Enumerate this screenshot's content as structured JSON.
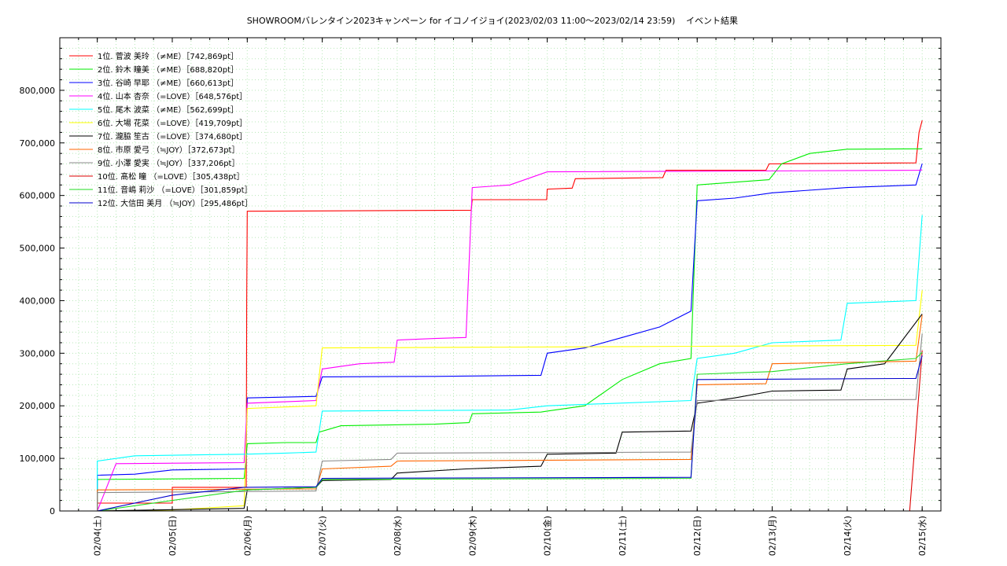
{
  "chart_data": {
    "type": "line",
    "title": "SHOWROOMバレンタイン2023キャンペーン for イコノイジョイ(2023/02/03 11:00〜2023/02/14 23:59)",
    "subtitle": "イベント結果",
    "xlabel": "",
    "ylabel": "",
    "ylim": [
      0,
      900000
    ],
    "xlim": [
      "2023-02-03 12:00",
      "2023-02-15 06:00"
    ],
    "grid": true,
    "legend_position": "top-left",
    "x_ticks": [
      "02/04(土)",
      "02/05(日)",
      "02/06(月)",
      "02/07(火)",
      "02/08(水)",
      "02/09(木)",
      "02/10(金)",
      "02/11(土)",
      "02/12(日)",
      "02/13(月)",
      "02/14(火)",
      "02/15(水)"
    ],
    "y_ticks": [
      "0",
      "100,000",
      "200,000",
      "300,000",
      "400,000",
      "500,000",
      "600,000",
      "700,000",
      "800,000"
    ],
    "series": [
      {
        "name": "1位. 菅波 美玲 （≠ME）［742,869pt］",
        "color": "#ff0000",
        "points": [
          [
            "2023-02-04 00:00",
            5000
          ],
          [
            "2023-02-04 00:00",
            15000
          ],
          [
            "2023-02-04 12:00",
            15000
          ],
          [
            "2023-02-05 00:00",
            15000
          ],
          [
            "2023-02-05 00:00",
            45000
          ],
          [
            "2023-02-05 23:40",
            45000
          ],
          [
            "2023-02-05 23:50",
            400000
          ],
          [
            "2023-02-06 00:00",
            570000
          ],
          [
            "2023-02-08 23:40",
            572000
          ],
          [
            "2023-02-09 00:00",
            592000
          ],
          [
            "2023-02-09 23:50",
            592000
          ],
          [
            "2023-02-10 00:00",
            612000
          ],
          [
            "2023-02-10 08:00",
            614000
          ],
          [
            "2023-02-10 09:00",
            632000
          ],
          [
            "2023-02-11 13:00",
            634000
          ],
          [
            "2023-02-11 14:00",
            648000
          ],
          [
            "2023-02-12 22:00",
            648000
          ],
          [
            "2023-02-12 23:00",
            660000
          ],
          [
            "2023-02-14 22:00",
            662000
          ],
          [
            "2023-02-14 23:00",
            720000
          ],
          [
            "2023-02-15 00:00",
            742869
          ]
        ]
      },
      {
        "name": "2位. 鈴木 瞳美 （≠ME）［688,820pt］",
        "color": "#00ee00",
        "points": [
          [
            "2023-02-04 00:00",
            0
          ],
          [
            "2023-02-04 00:00",
            60000
          ],
          [
            "2023-02-05 23:00",
            62000
          ],
          [
            "2023-02-06 00:00",
            128000
          ],
          [
            "2023-02-06 12:00",
            130000
          ],
          [
            "2023-02-06 22:00",
            130000
          ],
          [
            "2023-02-06 23:00",
            150000
          ],
          [
            "2023-02-07 06:00",
            162000
          ],
          [
            "2023-02-08 12:00",
            165000
          ],
          [
            "2023-02-08 23:00",
            168000
          ],
          [
            "2023-02-09 00:00",
            185000
          ],
          [
            "2023-02-09 22:00",
            188000
          ],
          [
            "2023-02-10 00:00",
            190000
          ],
          [
            "2023-02-10 12:00",
            200000
          ],
          [
            "2023-02-11 00:00",
            250000
          ],
          [
            "2023-02-11 12:00",
            280000
          ],
          [
            "2023-02-11 22:00",
            290000
          ],
          [
            "2023-02-12 00:00",
            620000
          ],
          [
            "2023-02-12 23:00",
            630000
          ],
          [
            "2023-02-13 03:00",
            660000
          ],
          [
            "2023-02-13 12:00",
            680000
          ],
          [
            "2023-02-14 00:00",
            688000
          ],
          [
            "2023-02-15 00:00",
            688820
          ]
        ]
      },
      {
        "name": "3位. 谷崎 早耶 （≠ME）［660,613pt］",
        "color": "#0000ff",
        "points": [
          [
            "2023-02-04 00:00",
            0
          ],
          [
            "2023-02-04 00:00",
            68000
          ],
          [
            "2023-02-04 12:00",
            70000
          ],
          [
            "2023-02-05 00:00",
            78000
          ],
          [
            "2023-02-05 23:30",
            80000
          ],
          [
            "2023-02-06 00:00",
            215000
          ],
          [
            "2023-02-06 22:00",
            218000
          ],
          [
            "2023-02-07 00:00",
            255000
          ],
          [
            "2023-02-08 12:00",
            256000
          ],
          [
            "2023-02-09 22:00",
            258000
          ],
          [
            "2023-02-10 00:00",
            300000
          ],
          [
            "2023-02-10 12:00",
            310000
          ],
          [
            "2023-02-11 00:00",
            330000
          ],
          [
            "2023-02-11 12:00",
            350000
          ],
          [
            "2023-02-11 22:00",
            380000
          ],
          [
            "2023-02-12 00:00",
            590000
          ],
          [
            "2023-02-12 12:00",
            595000
          ],
          [
            "2023-02-13 00:00",
            605000
          ],
          [
            "2023-02-14 00:00",
            615000
          ],
          [
            "2023-02-14 22:00",
            620000
          ],
          [
            "2023-02-15 00:00",
            660613
          ]
        ]
      },
      {
        "name": "4位. 山本 杏奈 （=LOVE）［648,576pt］",
        "color": "#ff00ff",
        "points": [
          [
            "2023-02-04 00:00",
            0
          ],
          [
            "2023-02-04 06:00",
            90000
          ],
          [
            "2023-02-05 23:00",
            92000
          ],
          [
            "2023-02-06 00:00",
            205000
          ],
          [
            "2023-02-06 22:00",
            210000
          ],
          [
            "2023-02-07 00:00",
            270000
          ],
          [
            "2023-02-07 12:00",
            280000
          ],
          [
            "2023-02-07 23:00",
            283000
          ],
          [
            "2023-02-08 00:00",
            325000
          ],
          [
            "2023-02-08 12:00",
            328000
          ],
          [
            "2023-02-08 22:00",
            330000
          ],
          [
            "2023-02-09 00:00",
            615000
          ],
          [
            "2023-02-09 12:00",
            620000
          ],
          [
            "2023-02-10 00:00",
            645000
          ],
          [
            "2023-02-14 23:00",
            648000
          ],
          [
            "2023-02-15 00:00",
            648576
          ]
        ]
      },
      {
        "name": "5位. 尾木 波菜 （≠ME）［562,699pt］",
        "color": "#00ffff",
        "points": [
          [
            "2023-02-04 00:00",
            0
          ],
          [
            "2023-02-04 00:00",
            95000
          ],
          [
            "2023-02-04 12:00",
            105000
          ],
          [
            "2023-02-05 23:00",
            108000
          ],
          [
            "2023-02-06 12:00",
            110000
          ],
          [
            "2023-02-06 22:00",
            112000
          ],
          [
            "2023-02-07 00:00",
            190000
          ],
          [
            "2023-02-09 12:00",
            192000
          ],
          [
            "2023-02-10 00:00",
            200000
          ],
          [
            "2023-02-11 22:00",
            210000
          ],
          [
            "2023-02-12 00:00",
            290000
          ],
          [
            "2023-02-12 12:00",
            300000
          ],
          [
            "2023-02-13 00:00",
            320000
          ],
          [
            "2023-02-13 22:00",
            325000
          ],
          [
            "2023-02-14 00:00",
            395000
          ],
          [
            "2023-02-14 22:00",
            400000
          ],
          [
            "2023-02-15 00:00",
            562699
          ]
        ]
      },
      {
        "name": "6位. 大場 花菜 （=LOVE）［419,709pt］",
        "color": "#ffff00",
        "points": [
          [
            "2023-02-04 00:00",
            0
          ],
          [
            "2023-02-05 00:00",
            2000
          ],
          [
            "2023-02-05 23:00",
            10000
          ],
          [
            "2023-02-06 00:00",
            195000
          ],
          [
            "2023-02-06 22:00",
            200000
          ],
          [
            "2023-02-07 00:00",
            310000
          ],
          [
            "2023-02-14 22:00",
            315000
          ],
          [
            "2023-02-15 00:00",
            419709
          ]
        ]
      },
      {
        "name": "7位. 瀧脇 笙古 （=LOVE）［374,680pt］",
        "color": "#000000",
        "points": [
          [
            "2023-02-04 00:00",
            0
          ],
          [
            "2023-02-05 23:00",
            5000
          ],
          [
            "2023-02-06 00:00",
            40000
          ],
          [
            "2023-02-06 22:00",
            45000
          ],
          [
            "2023-02-07 00:00",
            58000
          ],
          [
            "2023-02-07 22:00",
            60000
          ],
          [
            "2023-02-08 00:00",
            72000
          ],
          [
            "2023-02-08 22:00",
            80000
          ],
          [
            "2023-02-09 22:00",
            85000
          ],
          [
            "2023-02-10 00:00",
            108000
          ],
          [
            "2023-02-10 22:00",
            110000
          ],
          [
            "2023-02-11 00:00",
            150000
          ],
          [
            "2023-02-11 22:00",
            152000
          ],
          [
            "2023-02-12 00:00",
            205000
          ],
          [
            "2023-02-12 12:00",
            215000
          ],
          [
            "2023-02-13 00:00",
            228000
          ],
          [
            "2023-02-13 22:00",
            230000
          ],
          [
            "2023-02-14 00:00",
            270000
          ],
          [
            "2023-02-14 12:00",
            280000
          ],
          [
            "2023-02-15 00:00",
            374680
          ]
        ]
      },
      {
        "name": "8位. 市原 愛弓 （≒JOY）［372,673pt］",
        "color": "#ff6600",
        "points": [
          [
            "2023-02-04 00:00",
            0
          ],
          [
            "2023-02-04 00:00",
            40000
          ],
          [
            "2023-02-06 22:00",
            42000
          ],
          [
            "2023-02-07 00:00",
            80000
          ],
          [
            "2023-02-07 22:00",
            85000
          ],
          [
            "2023-02-08 00:00",
            95000
          ],
          [
            "2023-02-11 22:00",
            98000
          ],
          [
            "2023-02-12 00:00",
            240000
          ],
          [
            "2023-02-12 22:00",
            242000
          ],
          [
            "2023-02-13 00:00",
            280000
          ],
          [
            "2023-02-14 22:00",
            285000
          ],
          [
            "2023-02-15 00:00",
            372673
          ]
        ]
      },
      {
        "name": "9位. 小澤 愛実 （≒JOY）［337,206pt］",
        "color": "#888888",
        "points": [
          [
            "2023-02-04 00:00",
            0
          ],
          [
            "2023-02-04 00:00",
            35000
          ],
          [
            "2023-02-06 22:00",
            38000
          ],
          [
            "2023-02-07 00:00",
            95000
          ],
          [
            "2023-02-07 22:00",
            98000
          ],
          [
            "2023-02-08 00:00",
            110000
          ],
          [
            "2023-02-11 22:00",
            112000
          ],
          [
            "2023-02-12 00:00",
            210000
          ],
          [
            "2023-02-14 22:00",
            212000
          ],
          [
            "2023-02-15 00:00",
            337206
          ]
        ]
      },
      {
        "name": "10位. 髙松 瞳 （=LOVE）［305,438pt］",
        "color": "#dd0000",
        "points": [
          [
            "2023-02-04 00:00",
            0
          ],
          [
            "2023-02-14 20:00",
            0
          ],
          [
            "2023-02-14 22:00",
            150000
          ],
          [
            "2023-02-15 00:00",
            305438
          ]
        ]
      },
      {
        "name": "11位. 音嶋 莉沙 （=LOVE）［301,859pt］",
        "color": "#22dd22",
        "points": [
          [
            "2023-02-04 00:00",
            0
          ],
          [
            "2023-02-06 00:00",
            40000
          ],
          [
            "2023-02-06 22:00",
            45000
          ],
          [
            "2023-02-07 00:00",
            60000
          ],
          [
            "2023-02-11 22:00",
            62000
          ],
          [
            "2023-02-12 00:00",
            260000
          ],
          [
            "2023-02-13 00:00",
            265000
          ],
          [
            "2023-02-14 00:00",
            280000
          ],
          [
            "2023-02-14 22:00",
            290000
          ],
          [
            "2023-02-15 00:00",
            301859
          ]
        ]
      },
      {
        "name": "12位. 大信田 美月 （≒JOY）［295,486pt］",
        "color": "#0000cc",
        "points": [
          [
            "2023-02-04 00:00",
            0
          ],
          [
            "2023-02-05 00:00",
            30000
          ],
          [
            "2023-02-05 23:00",
            45000
          ],
          [
            "2023-02-06 22:00",
            46000
          ],
          [
            "2023-02-07 00:00",
            62000
          ],
          [
            "2023-02-11 22:00",
            64000
          ],
          [
            "2023-02-12 00:00",
            250000
          ],
          [
            "2023-02-14 22:00",
            252000
          ],
          [
            "2023-02-15 00:00",
            295486
          ]
        ]
      }
    ]
  }
}
